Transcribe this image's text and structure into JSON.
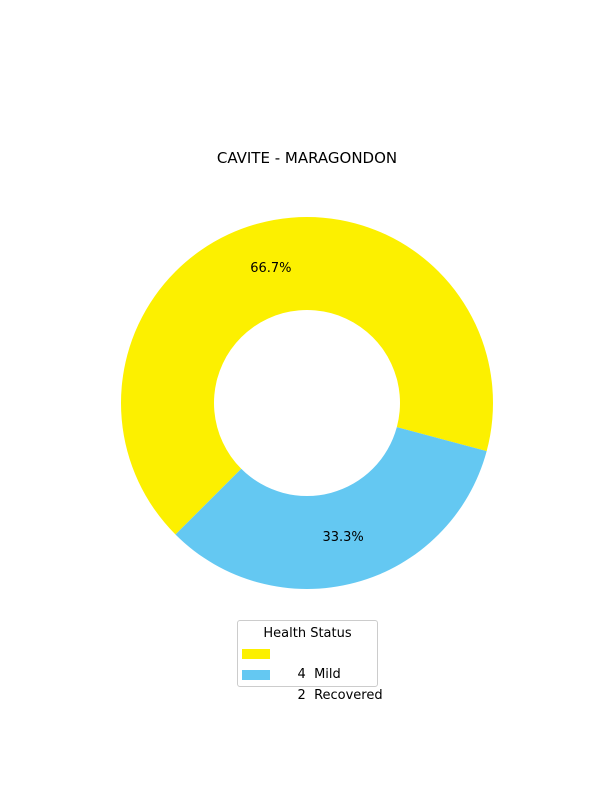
{
  "chart_data": {
    "type": "pie",
    "style": "donut",
    "title": "CAVITE - MARAGONDON",
    "categories": [
      "Mild",
      "Recovered"
    ],
    "values": [
      4,
      2
    ],
    "percent_labels": [
      "66.7%",
      "33.3%"
    ],
    "colors": [
      "#fcf000",
      "#64c8f2"
    ],
    "legend": {
      "title": "Health Status",
      "placement": "bottom-center",
      "entries": [
        "4  Mild",
        "2  Recovered"
      ]
    }
  }
}
